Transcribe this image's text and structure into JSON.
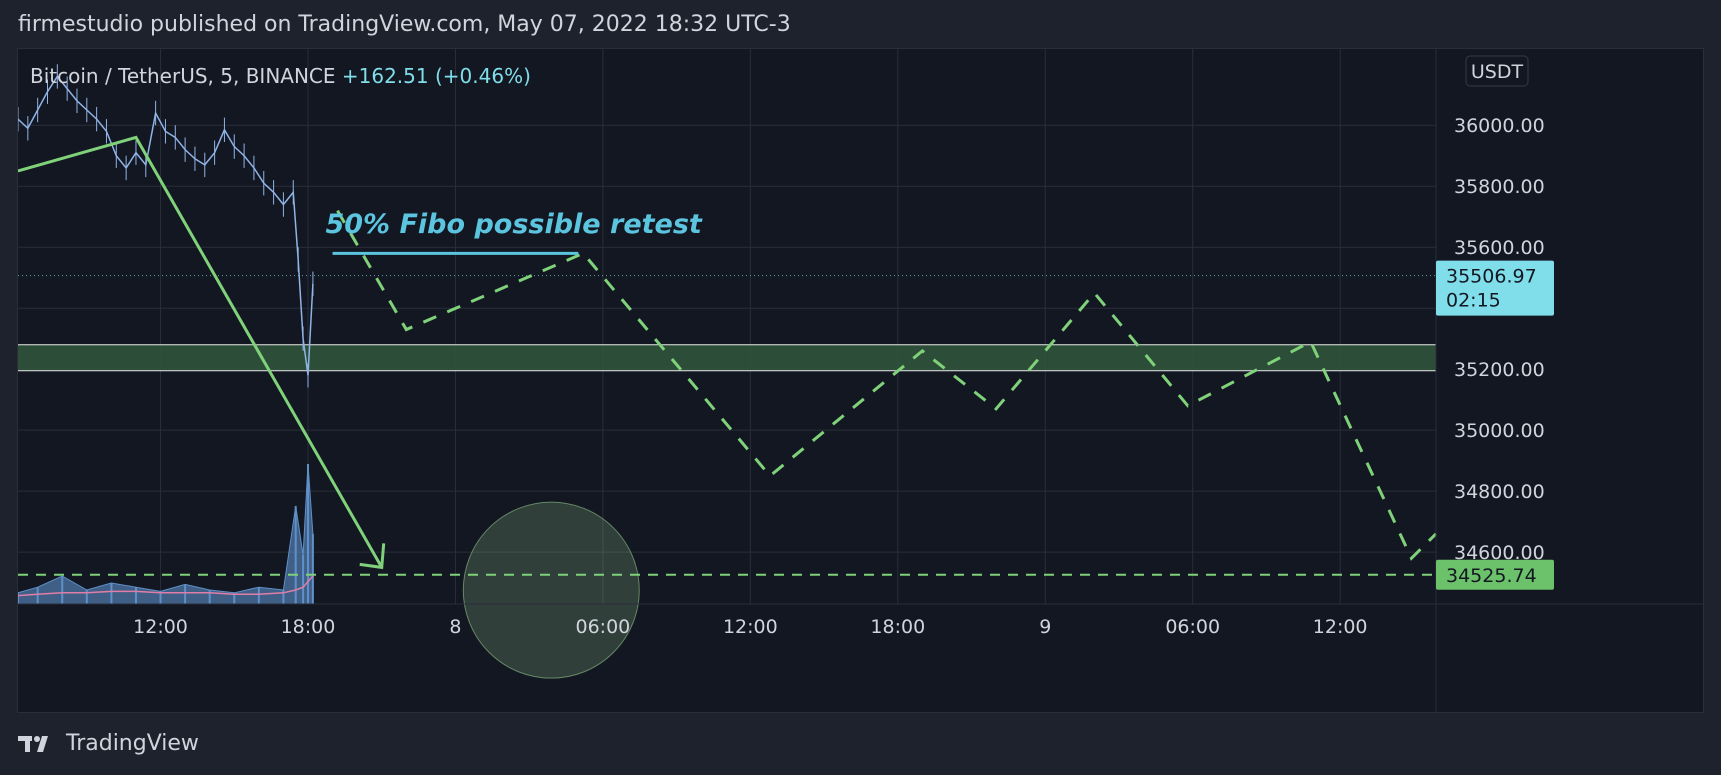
{
  "header": {
    "published_line": "firmestudio published on TradingView.com, May 07, 2022 18:32 UTC-3"
  },
  "legend": {
    "symbol": "Bitcoin / TetherUS, 5, BINANCE",
    "change": "+162.51 (+0.46%)"
  },
  "footer": {
    "brand": "TradingView"
  },
  "colors": {
    "background": "#131722",
    "outer": "#1e222d",
    "grid": "#2a2e39",
    "axis_text": "#d1d4dc",
    "candles": "#90b4e6",
    "projection": "#7fd17a",
    "zone": "#30543b",
    "fibo_text": "#5bc4df",
    "price_tag": "#80deea",
    "target_tag": "#6cc26a",
    "volume": "#5f90c9",
    "volume_ma": "#e07ea8"
  },
  "chart_data": {
    "type": "line",
    "title": "Bitcoin / TetherUS, 5, BINANCE",
    "currency": "USDT",
    "ylim": [
      34430,
      36250
    ],
    "y_ticks": [
      "36000.00",
      "35800.00",
      "35600.00",
      "35400.00",
      "35200.00",
      "35000.00",
      "34800.00",
      "34600.00"
    ],
    "y_tick_values": [
      36000,
      35800,
      35600,
      35400,
      35200,
      35000,
      34800,
      34600
    ],
    "x_ticks": [
      "12:00",
      "18:00",
      "8",
      "06:00",
      "12:00",
      "18:00",
      "9",
      "06:00",
      "12:00"
    ],
    "x_tick_hours": [
      12,
      18,
      24,
      30,
      36,
      42,
      48,
      54,
      60
    ],
    "xlim_hours": [
      6.2,
      63.9
    ],
    "grid": true,
    "current_price": {
      "label": "35506.97",
      "countdown": "02:15",
      "value": 35506.97
    },
    "target_price": {
      "label": "34525.74",
      "value": 34525.74
    },
    "price_series": {
      "name": "BTCUSDT 5m",
      "x_hours": [
        6.2,
        6.6,
        7.0,
        7.4,
        7.8,
        8.2,
        8.6,
        9.0,
        9.4,
        9.8,
        10.2,
        10.6,
        11.0,
        11.4,
        11.8,
        12.2,
        12.6,
        13.0,
        13.4,
        13.8,
        14.2,
        14.6,
        15.0,
        15.4,
        15.8,
        16.2,
        16.6,
        17.0,
        17.4,
        17.6,
        17.8,
        18.0,
        18.2
      ],
      "values": [
        36020,
        35990,
        36050,
        36110,
        36160,
        36120,
        36080,
        36050,
        36020,
        35980,
        35900,
        35860,
        35910,
        35870,
        36040,
        35980,
        35960,
        35920,
        35890,
        35870,
        35910,
        35985,
        35930,
        35900,
        35860,
        35810,
        35780,
        35740,
        35780,
        35560,
        35300,
        35180,
        35480
      ]
    },
    "projection_solid": {
      "x_hours": [
        6.2,
        11.0,
        21.0
      ],
      "values": [
        35850,
        35960,
        34550
      ]
    },
    "projection_dashed": {
      "x_hours": [
        19.2,
        22.0,
        29.2,
        36.8,
        43.0,
        46.0,
        50.0,
        53.8,
        58.8,
        62.9,
        63.9
      ],
      "values": [
        35720,
        35330,
        35580,
        34850,
        35260,
        35070,
        35450,
        35080,
        35290,
        34580,
        34660
      ]
    },
    "zone": {
      "from": 35195,
      "to": 35280
    },
    "fibo_line": {
      "x_hours": [
        19.0,
        29.0
      ],
      "value": 35580
    },
    "target_circle": {
      "x_hour": 27.9,
      "value": 34600
    },
    "volume": {
      "x_hours": [
        6.2,
        7.0,
        8.0,
        9.0,
        10.0,
        11.0,
        12.0,
        13.0,
        14.0,
        15.0,
        16.0,
        17.0,
        17.5,
        17.8,
        18.0,
        18.2
      ],
      "values": [
        8,
        12,
        20,
        10,
        15,
        12,
        9,
        14,
        10,
        8,
        12,
        10,
        70,
        35,
        100,
        50
      ],
      "ma": [
        6,
        7,
        8,
        8,
        9,
        9,
        8,
        8,
        8,
        7,
        7,
        8,
        10,
        12,
        16,
        20
      ]
    },
    "annotations": [
      {
        "text": "50% Fibo possible retest",
        "x_hour": 24.0,
        "value": 35680
      }
    ]
  }
}
